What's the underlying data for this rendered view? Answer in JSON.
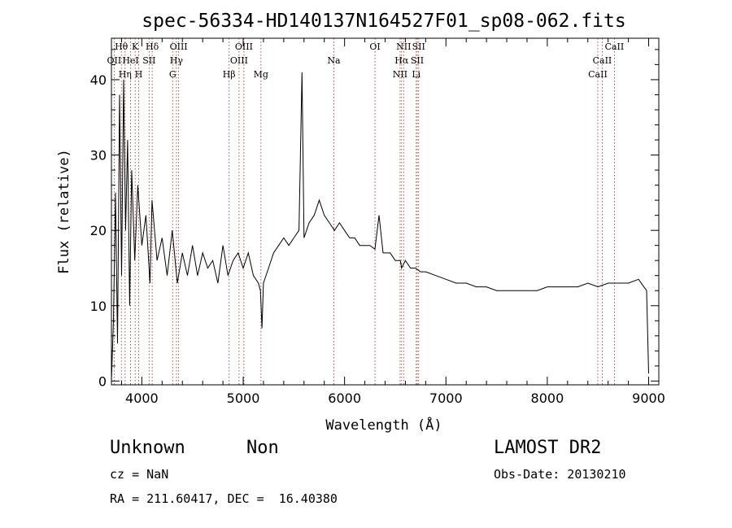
{
  "chart_data": {
    "type": "line",
    "title": "spec-56334-HD140137N164527F01_sp08-062.fits",
    "xlabel": "Wavelength (Å)",
    "ylabel": "Flux (relative)",
    "xlim": [
      3700,
      9100
    ],
    "ylim": [
      -0.5,
      45.5
    ],
    "xticks": [
      4000,
      5000,
      6000,
      7000,
      8000,
      9000
    ],
    "yticks": [
      0,
      10,
      20,
      30,
      40
    ],
    "grid": false,
    "series": [
      {
        "x": [
          3700,
          3720,
          3740,
          3760,
          3780,
          3800,
          3820,
          3840,
          3860,
          3880,
          3900,
          3930,
          3960,
          4000,
          4040,
          4080,
          4100,
          4150,
          4200,
          4250,
          4300,
          4350,
          4400,
          4450,
          4500,
          4550,
          4600,
          4650,
          4700,
          4750,
          4800,
          4850,
          4900,
          4950,
          5000,
          5050,
          5100,
          5150,
          5170,
          5185,
          5200,
          5250,
          5300,
          5350,
          5400,
          5450,
          5500,
          5550,
          5580,
          5600,
          5650,
          5700,
          5750,
          5800,
          5850,
          5900,
          5950,
          6000,
          6050,
          6100,
          6150,
          6200,
          6250,
          6300,
          6340,
          6380,
          6400,
          6450,
          6500,
          6550,
          6563,
          6600,
          6650,
          6700,
          6750,
          6800,
          6900,
          7000,
          7100,
          7200,
          7300,
          7400,
          7500,
          7600,
          7700,
          7800,
          7900,
          8000,
          8100,
          8200,
          8300,
          8400,
          8500,
          8600,
          8700,
          8800,
          8900,
          8980,
          9000
        ],
        "values": [
          0,
          8,
          25,
          5,
          38,
          14,
          40,
          20,
          32,
          10,
          28,
          16,
          26,
          18,
          22,
          13,
          24,
          16,
          19,
          14,
          20,
          13,
          17,
          14,
          18,
          14,
          17,
          15,
          16,
          13,
          18,
          14,
          16,
          17,
          15,
          17,
          14,
          13,
          12,
          7,
          13,
          15,
          17,
          18,
          19,
          18,
          19,
          20,
          41,
          19,
          21,
          22,
          24,
          22,
          21,
          20,
          21,
          20,
          19,
          19,
          18,
          18,
          18,
          17.5,
          22,
          17,
          17,
          17,
          16,
          16,
          15,
          16,
          15,
          15,
          14.5,
          14.5,
          14,
          13.5,
          13,
          13,
          12.5,
          12.5,
          12,
          12,
          12,
          12,
          12,
          12.5,
          12.5,
          12.5,
          12.5,
          13,
          12.5,
          13,
          13,
          13,
          13.5,
          12,
          1
        ]
      }
    ],
    "lines": [
      {
        "label": "OII",
        "x": 3727,
        "row": 2
      },
      {
        "label": "Hθ",
        "x": 3798,
        "row": 1
      },
      {
        "label": "Hη",
        "x": 3835,
        "row": 3
      },
      {
        "label": "HeI",
        "x": 3889,
        "row": 2
      },
      {
        "label": "K",
        "x": 3934,
        "row": 1
      },
      {
        "label": "H",
        "x": 3969,
        "row": 3
      },
      {
        "label": "SII",
        "x": 4072,
        "row": 2
      },
      {
        "label": "Hδ",
        "x": 4102,
        "row": 1
      },
      {
        "label": "G",
        "x": 4304,
        "row": 3
      },
      {
        "label": "Hγ",
        "x": 4341,
        "row": 2
      },
      {
        "label": "OIII",
        "x": 4363,
        "row": 1
      },
      {
        "label": "Hβ",
        "x": 4861,
        "row": 3
      },
      {
        "label": "OIII",
        "x": 4959,
        "row": 2
      },
      {
        "label": "OIII",
        "x": 5007,
        "row": 1
      },
      {
        "label": "Mg",
        "x": 5175,
        "row": 3
      },
      {
        "label": "Na",
        "x": 5894,
        "row": 2
      },
      {
        "label": "OI",
        "x": 6300,
        "row": 1
      },
      {
        "label": "NII",
        "x": 6548,
        "row": 3
      },
      {
        "label": "Hα",
        "x": 6563,
        "row": 2
      },
      {
        "label": "NII",
        "x": 6583,
        "row": 1
      },
      {
        "label": "Li",
        "x": 6707,
        "row": 3
      },
      {
        "label": "SII",
        "x": 6717,
        "row": 2
      },
      {
        "label": "SII",
        "x": 6731,
        "row": 1
      },
      {
        "label": "CaII",
        "x": 8498,
        "row": 3
      },
      {
        "label": "CaII",
        "x": 8542,
        "row": 2
      },
      {
        "label": "CaII",
        "x": 8662,
        "row": 1
      }
    ],
    "colors": {
      "line_markers": "#a52a2a",
      "spectrum": "#000000"
    }
  },
  "footer": {
    "object_class": "Unknown",
    "subclass": "Non",
    "survey": "LAMOST DR2",
    "cz": "cz = NaN",
    "obs_date": "Obs-Date: 20130210",
    "coords": "RA = 211.60417, DEC =  16.40380"
  }
}
